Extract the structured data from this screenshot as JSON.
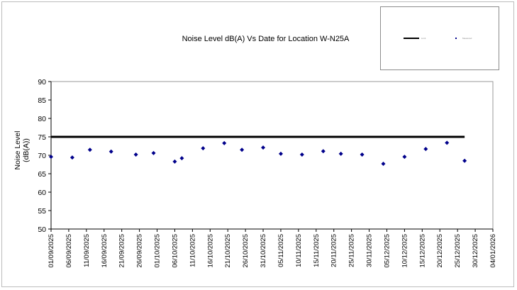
{
  "chart_data": {
    "type": "scatter",
    "title": "Noise Level dB(A) Vs Date for Location W-N25A",
    "xlabel": "",
    "ylabel": "Noise Level (dB(A))",
    "ylabel_lines": [
      "Noise Level",
      "(dB(A))"
    ],
    "ylim": [
      50,
      90
    ],
    "yticks": [
      50,
      55,
      60,
      65,
      70,
      75,
      80,
      85,
      90
    ],
    "xlim": [
      "01/09/2025",
      "04/01/2026"
    ],
    "xticks": [
      "01/09/2025",
      "06/09/2025",
      "11/09/2025",
      "16/09/2025",
      "21/09/2025",
      "26/09/2025",
      "01/10/2025",
      "06/10/2025",
      "11/10/2025",
      "16/10/2025",
      "21/10/2025",
      "26/10/2025",
      "31/10/2025",
      "05/11/2025",
      "10/11/2025",
      "15/11/2025",
      "20/11/2025",
      "25/11/2025",
      "30/11/2025",
      "05/12/2025",
      "10/12/2025",
      "15/12/2025",
      "20/12/2025",
      "25/12/2025",
      "30/12/2025",
      "04/01/2026"
    ],
    "grid": false,
    "legend_position": "top-right box",
    "legend_entries": [
      "Limit (illegible)",
      "Measured (illegible)"
    ],
    "series": [
      {
        "name": "Limit",
        "kind": "line",
        "color": "#000000",
        "points": [
          {
            "x_day": 0,
            "y": 75
          },
          {
            "x_day": 117,
            "y": 75
          }
        ]
      },
      {
        "name": "Measured",
        "kind": "marker",
        "color": "#00008b",
        "points": [
          {
            "x_day": 0,
            "y": 69.6
          },
          {
            "x_day": 6,
            "y": 69.4
          },
          {
            "x_day": 11,
            "y": 71.5
          },
          {
            "x_day": 17,
            "y": 71.0
          },
          {
            "x_day": 24,
            "y": 70.2
          },
          {
            "x_day": 29,
            "y": 70.6
          },
          {
            "x_day": 35,
            "y": 68.3
          },
          {
            "x_day": 37,
            "y": 69.2
          },
          {
            "x_day": 43,
            "y": 71.9
          },
          {
            "x_day": 49,
            "y": 73.3
          },
          {
            "x_day": 54,
            "y": 71.5
          },
          {
            "x_day": 60,
            "y": 72.1
          },
          {
            "x_day": 65,
            "y": 70.4
          },
          {
            "x_day": 71,
            "y": 70.2
          },
          {
            "x_day": 77,
            "y": 71.1
          },
          {
            "x_day": 82,
            "y": 70.4
          },
          {
            "x_day": 88,
            "y": 70.2
          },
          {
            "x_day": 94,
            "y": 67.7
          },
          {
            "x_day": 100,
            "y": 69.6
          },
          {
            "x_day": 106,
            "y": 71.7
          },
          {
            "x_day": 112,
            "y": 73.4
          },
          {
            "x_day": 117,
            "y": 68.5
          }
        ]
      }
    ]
  },
  "legend": {
    "limit_label": "Limit",
    "measured_label": "Measured"
  },
  "colors": {
    "limit": "#000000",
    "marker": "#00008b",
    "axis": "#000000"
  }
}
